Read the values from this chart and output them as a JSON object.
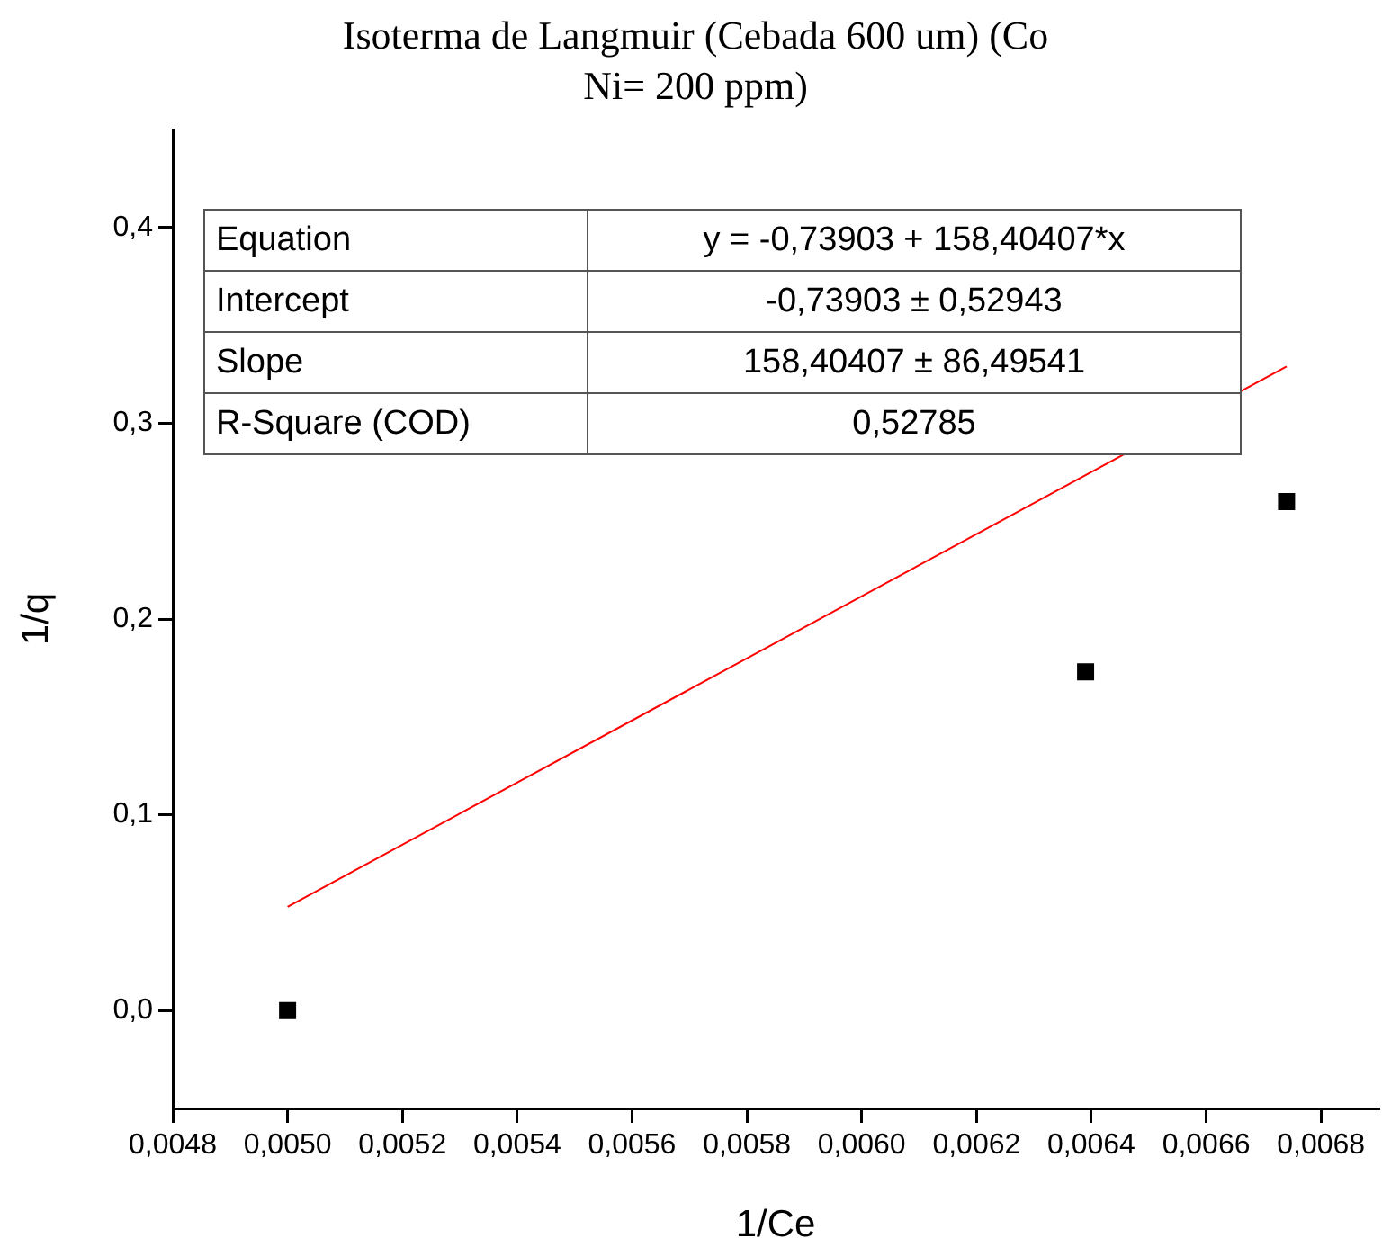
{
  "chart_data": {
    "type": "scatter",
    "title": "Isoterma de Langmuir (Cebada 600 um) (Co Ni= 200 ppm)",
    "xlabel": "1/Ce",
    "ylabel": "1/q",
    "marker": "square",
    "xlim": [
      0.0048,
      0.0069
    ],
    "xticks": [
      {
        "value": 0.0048,
        "label": "0,0048"
      },
      {
        "value": 0.005,
        "label": "0,0050"
      },
      {
        "value": 0.0052,
        "label": "0,0052"
      },
      {
        "value": 0.0054,
        "label": "0,0054"
      },
      {
        "value": 0.0056,
        "label": "0,0056"
      },
      {
        "value": 0.0058,
        "label": "0,0058"
      },
      {
        "value": 0.006,
        "label": "0,0060"
      },
      {
        "value": 0.0062,
        "label": "0,0062"
      },
      {
        "value": 0.0064,
        "label": "0,0064"
      },
      {
        "value": 0.0066,
        "label": "0,0066"
      },
      {
        "value": 0.0068,
        "label": "0,0068"
      }
    ],
    "ylim": [
      -0.05,
      0.45
    ],
    "yticks": [
      {
        "value": 0,
        "label": "0,0"
      },
      {
        "value": 0.1,
        "label": "0,1"
      },
      {
        "value": 0.2,
        "label": "0,2"
      },
      {
        "value": 0.3,
        "label": "0,3"
      },
      {
        "value": 0.4,
        "label": "0,4"
      }
    ],
    "series": [
      {
        "color": "#000000",
        "x": [
          0.005,
          0.00639,
          0.00674
        ],
        "values": [
          0,
          0.173,
          0.26
        ]
      },
      {
        "type": "line",
        "color": "#ff0000",
        "marker": "none",
        "x": [
          0.005,
          0.00674
        ],
        "values": [
          0.053,
          0.329
        ]
      }
    ],
    "annotations": [
      "Equation",
      "y = -0,73903 + 158,40407*x",
      "Intercept",
      "-0,73903 ± 0,52943",
      "Slope",
      "158,40407 ± 86,49541",
      "R-Square (COD)",
      "0,52785"
    ]
  }
}
